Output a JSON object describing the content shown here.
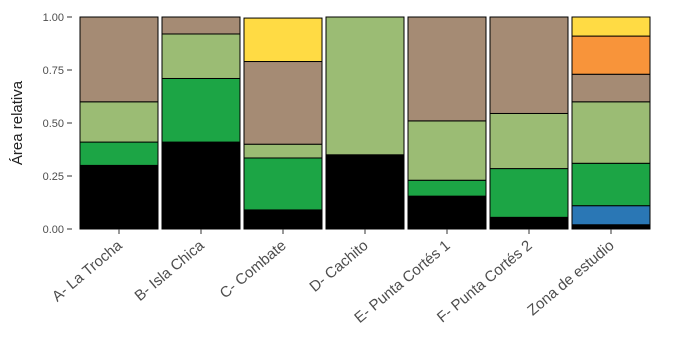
{
  "chart_data": {
    "type": "bar",
    "stacked": true,
    "title": "",
    "xlabel": "",
    "ylabel": "Área relativa",
    "ylim": [
      0,
      1
    ],
    "yticks": [
      "0.00",
      "0.25",
      "0.50",
      "0.75",
      "1.00"
    ],
    "ytick_values": [
      0,
      0.25,
      0.5,
      0.75,
      1
    ],
    "grid": false,
    "legend": "none",
    "categories": [
      "A- La Trocha",
      "B- Isla Chica",
      "C- Combate",
      "D- Cachito",
      "E- Punta Cortés 1",
      "F- Punta Cortés 2",
      "Zona de estudio"
    ],
    "series": [
      {
        "color": "#000000",
        "values": [
          0.3,
          0.41,
          0.09,
          0.35,
          0.155,
          0.055,
          0.02
        ]
      },
      {
        "color": "#2A77B5",
        "values": [
          0,
          0,
          0,
          0,
          0,
          0,
          0.09
        ]
      },
      {
        "color": "#1CA545",
        "values": [
          0.11,
          0.3,
          0.245,
          0,
          0.075,
          0.23,
          0.2
        ]
      },
      {
        "color": "#9BBC74",
        "values": [
          0.19,
          0.21,
          0.065,
          0.65,
          0.28,
          0.26,
          0.29
        ]
      },
      {
        "color": "#A58B74",
        "values": [
          0.4,
          0.08,
          0.39,
          0,
          0.49,
          0.455,
          0.13
        ]
      },
      {
        "color": "#FFDB44",
        "values": [
          0,
          0,
          0.205,
          0,
          0,
          0,
          0
        ]
      },
      {
        "color": "#F8943A",
        "values": [
          0,
          0,
          0,
          0,
          0,
          0,
          0.18
        ]
      },
      {
        "color": "#FFDB44",
        "values": [
          0,
          0,
          0,
          0,
          0,
          0,
          0.09
        ]
      }
    ]
  }
}
